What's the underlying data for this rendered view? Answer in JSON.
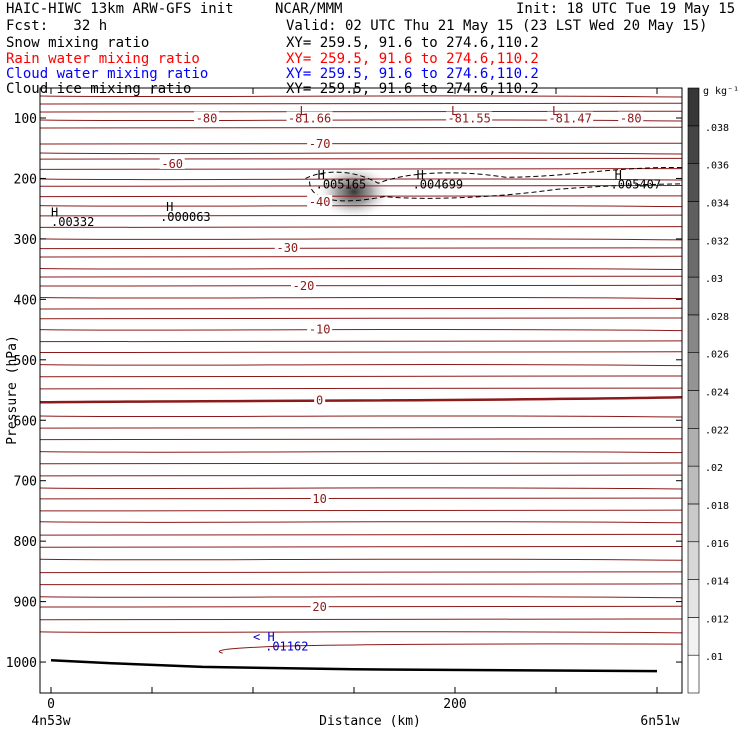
{
  "header": {
    "title_left": "HAIC-HIWC 13km ARW-GFS init",
    "org": "NCAR/MMM",
    "init": "Init: 18 UTC Tue 19 May 15",
    "fcst": "Fcst:   32 h",
    "valid": "Valid: 02 UTC Thu 21 May 15 (23 LST Wed 20 May 15)",
    "fields": [
      {
        "label": "Snow mixing ratio",
        "xy": "XY= 259.5, 91.6 to 274.6,110.2",
        "color": "#000000"
      },
      {
        "label": "Rain water mixing ratio",
        "xy": "XY= 259.5, 91.6 to 274.6,110.2",
        "color": "#ff0000"
      },
      {
        "label": "Cloud water mixing ratio",
        "xy": "XY= 259.5, 91.6 to 274.6,110.2",
        "color": "#0000ff"
      },
      {
        "label": "Cloud ice mixing ratio",
        "xy": "XY= 259.5, 91.6 to 274.6,110.2",
        "color": "#000000"
      }
    ]
  },
  "chart_data": {
    "type": "cross-section",
    "ylabel": "Pressure (hPa)",
    "xlabel": "Distance (km)",
    "x_start_label": "4n53w",
    "x_end_label": "6n51w",
    "xlim": [
      0,
      300
    ],
    "ylim": [
      1050,
      50
    ],
    "x_ticks": [
      0,
      200
    ],
    "y_ticks": [
      100,
      200,
      300,
      400,
      500,
      600,
      700,
      800,
      900,
      1000
    ],
    "colorbar": {
      "unit": "g kg⁻¹",
      "ticks": [
        ".01",
        ".012",
        ".014",
        ".016",
        ".018",
        ".02",
        ".022",
        ".024",
        ".026",
        ".028",
        ".03",
        ".032",
        ".034",
        ".036",
        ".038"
      ]
    },
    "temperature_contour_labels": [
      {
        "text": "-80",
        "x": 77,
        "p": 101
      },
      {
        "text": "-81.66",
        "x": 128,
        "p": 101
      },
      {
        "text": "-81.55",
        "x": 207,
        "p": 101
      },
      {
        "text": "-81.47",
        "x": 257,
        "p": 101
      },
      {
        "text": "-80",
        "x": 287,
        "p": 101
      },
      {
        "text": "-70",
        "x": 133,
        "p": 143
      },
      {
        "text": "-60",
        "x": 60,
        "p": 176
      },
      {
        "text": "-40",
        "x": 133,
        "p": 239
      },
      {
        "text": "-30",
        "x": 117,
        "p": 315
      },
      {
        "text": "-20",
        "x": 125,
        "p": 378
      },
      {
        "text": "-10",
        "x": 133,
        "p": 450
      },
      {
        "text": "0",
        "x": 133,
        "p": 567
      },
      {
        "text": "10",
        "x": 133,
        "p": 730
      },
      {
        "text": "20",
        "x": 133,
        "p": 909
      }
    ],
    "extrema_labels": [
      {
        "text": "L",
        "x": 123,
        "p": 95,
        "color": "#8b1a1a"
      },
      {
        "text": "L",
        "x": 198,
        "p": 95,
        "color": "#8b1a1a"
      },
      {
        "text": "L",
        "x": 248,
        "p": 95,
        "color": "#8b1a1a"
      },
      {
        "text": "H",
        "x": 132,
        "p": 201,
        "color": "#000000"
      },
      {
        "text": ".005165",
        "x": 131,
        "p": 217,
        "color": "#000000"
      },
      {
        "text": "H",
        "x": 181,
        "p": 201,
        "color": "#000000"
      },
      {
        "text": ".004699",
        "x": 179,
        "p": 217,
        "color": "#000000"
      },
      {
        "text": "H",
        "x": 279,
        "p": 201,
        "color": "#000000"
      },
      {
        "text": ".005407",
        "x": 277,
        "p": 217,
        "color": "#000000"
      },
      {
        "text": "H",
        "x": 57,
        "p": 254,
        "color": "#000000"
      },
      {
        "text": ".000063",
        "x": 54,
        "p": 270,
        "color": "#000000"
      },
      {
        "text": "H",
        "x": 0,
        "p": 263,
        "color": "#000000"
      },
      {
        "text": ".00332",
        "x": 0,
        "p": 279,
        "color": "#000000"
      },
      {
        "text": "< H",
        "x": 100,
        "p": 965,
        "color": "#0000cc"
      },
      {
        "text": ".01162",
        "x": 106,
        "p": 981,
        "color": "#0000cc"
      }
    ],
    "ice_max": {
      "x": 150,
      "p": 222
    },
    "ground_profile": [
      [
        0,
        997
      ],
      [
        30,
        1002
      ],
      [
        75,
        1008
      ],
      [
        150,
        1012
      ],
      [
        300,
        1015
      ]
    ]
  }
}
